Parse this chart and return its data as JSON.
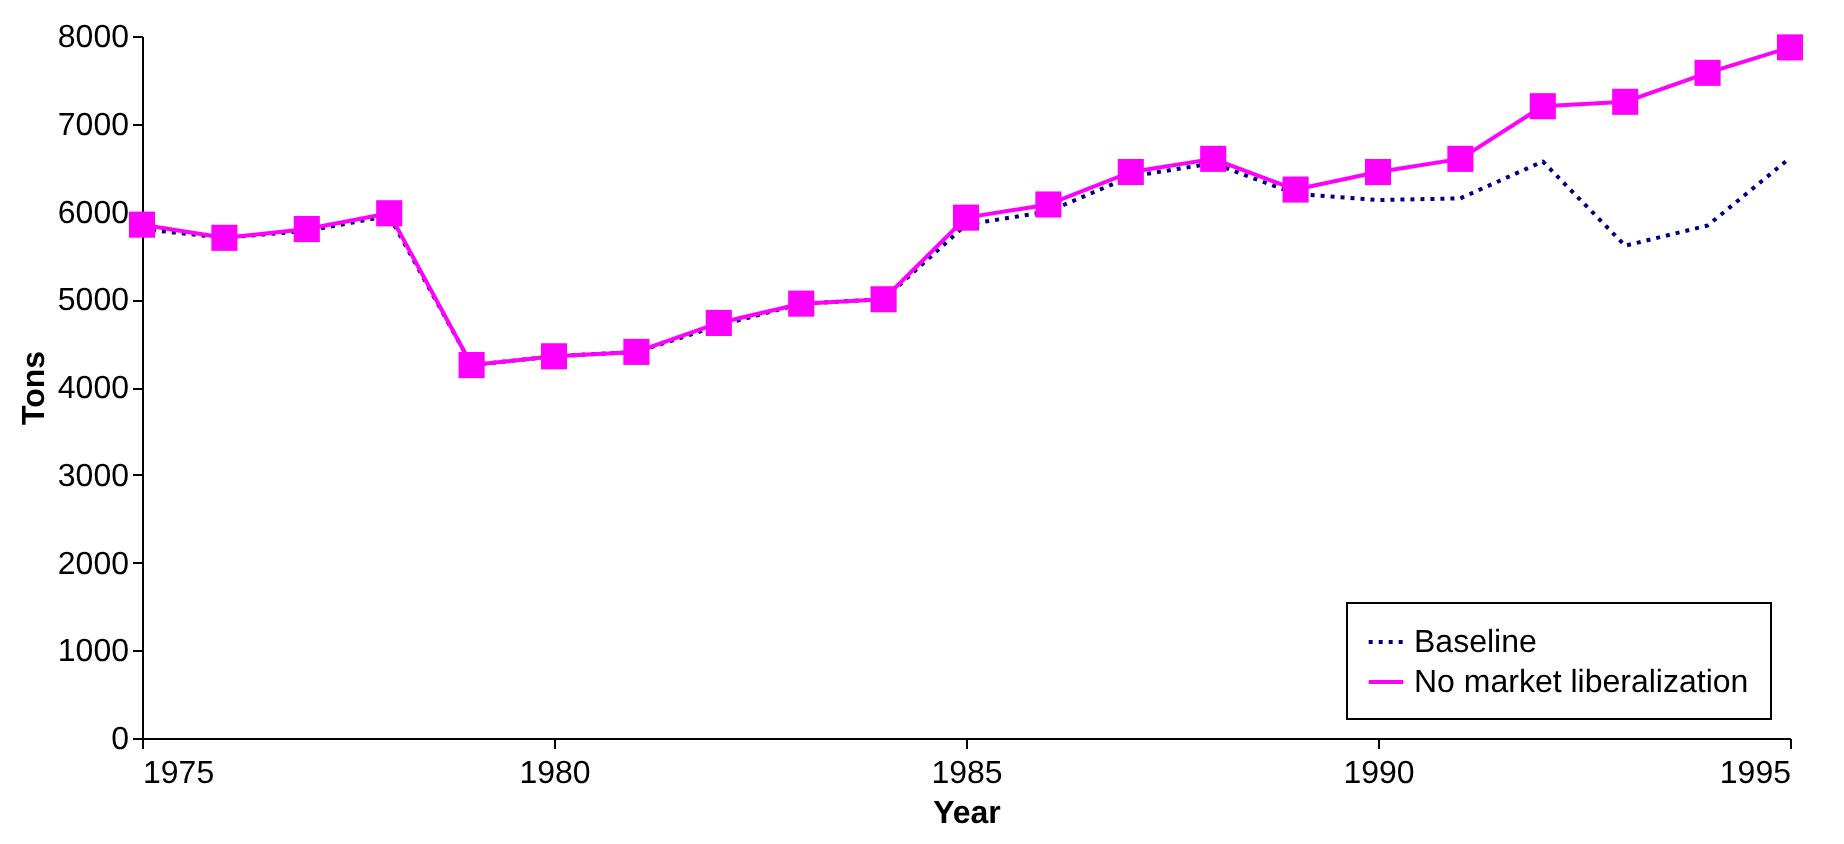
{
  "chart_data": {
    "type": "line",
    "xlabel": "Year",
    "ylabel": "Tons",
    "x": [
      1975,
      1976,
      1977,
      1978,
      1979,
      1980,
      1981,
      1982,
      1983,
      1984,
      1985,
      1986,
      1987,
      1988,
      1989,
      1990,
      1991,
      1992,
      1993,
      1994,
      1995
    ],
    "series": [
      {
        "name": "Baseline",
        "color": "#000080",
        "line_style": "dotted",
        "marker": "none",
        "values": [
          5800,
          5700,
          5780,
          5950,
          4250,
          4350,
          4400,
          4700,
          4950,
          5000,
          5850,
          6000,
          6400,
          6550,
          6200,
          6130,
          6150,
          6570,
          5610,
          5840,
          6610
        ]
      },
      {
        "name": "No market liberalization",
        "color": "#ff00ff",
        "line_style": "solid",
        "marker": "square",
        "values": [
          5850,
          5700,
          5800,
          5980,
          4250,
          4350,
          4400,
          4730,
          4950,
          5000,
          5930,
          6080,
          6450,
          6600,
          6250,
          6450,
          6600,
          7200,
          7250,
          7580,
          7870
        ]
      }
    ],
    "xlim": [
      1975,
      1995
    ],
    "xticks": [
      1975,
      1980,
      1985,
      1990,
      1995
    ],
    "ylim": [
      0,
      8000
    ],
    "yticks": [
      0,
      1000,
      2000,
      3000,
      4000,
      5000,
      6000,
      7000,
      8000
    ],
    "grid": false,
    "legend": "bottom right"
  }
}
